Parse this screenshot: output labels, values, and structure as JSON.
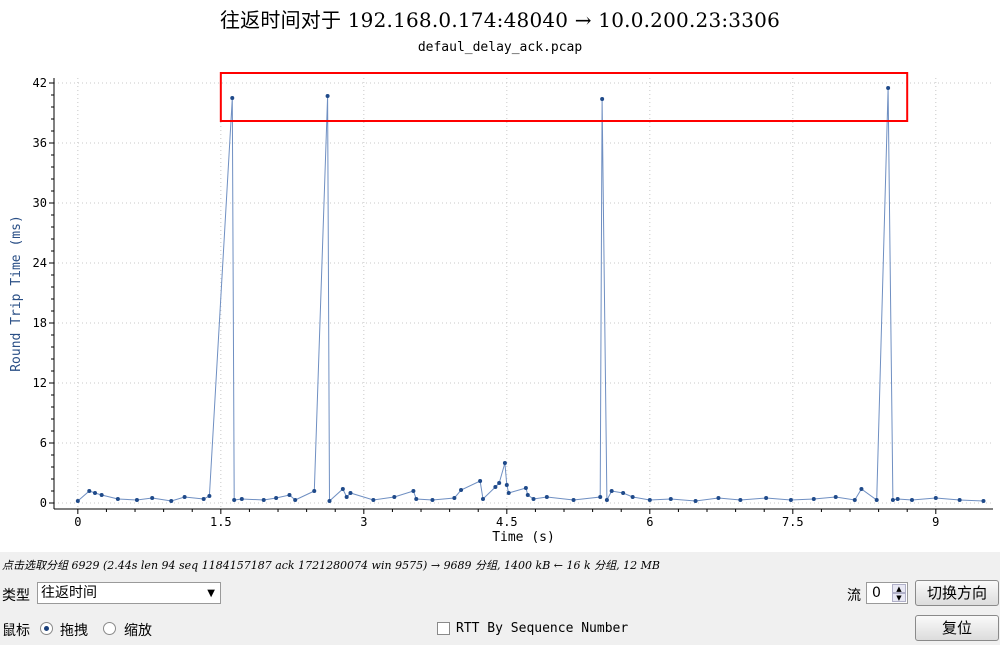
{
  "chart_data": {
    "type": "scatter",
    "title": "往返时间对于 192.168.0.174:48040 → 10.0.200.23:3306",
    "subtitle": "defaul_delay_ack.pcap",
    "xlabel": "Time (s)",
    "ylabel": "Round Trip Time (ms)",
    "xlim": [
      -0.25,
      9.6
    ],
    "ylim": [
      -0.6,
      42.5
    ],
    "x_ticks": [
      "0",
      "1.5",
      "3",
      "4.5",
      "6",
      "7.5",
      "9"
    ],
    "x_tick_values": [
      0,
      1.5,
      3,
      4.5,
      6,
      7.5,
      9
    ],
    "y_ticks": [
      "0",
      "6",
      "12",
      "18",
      "24",
      "30",
      "36",
      "42"
    ],
    "y_tick_values": [
      0,
      6,
      12,
      18,
      24,
      30,
      36,
      42
    ],
    "grid": true,
    "series": [
      {
        "color": "#1f4a8a",
        "x": [
          0.0,
          0.12,
          0.18,
          0.25,
          0.42,
          0.62,
          0.78,
          0.98,
          1.12,
          1.32,
          1.38,
          1.62,
          1.64,
          1.72,
          1.95,
          2.08,
          2.22,
          2.28,
          2.48,
          2.62,
          2.64,
          2.78,
          2.82,
          2.86,
          3.1,
          3.32,
          3.52,
          3.55,
          3.72,
          3.95,
          4.02,
          4.22,
          4.25,
          4.38,
          4.42,
          4.48,
          4.5,
          4.52,
          4.7,
          4.72,
          4.78,
          4.92,
          5.2,
          5.48,
          5.5,
          5.55,
          5.6,
          5.72,
          5.82,
          6.0,
          6.22,
          6.48,
          6.72,
          6.95,
          7.22,
          7.48,
          7.72,
          7.95,
          8.15,
          8.22,
          8.38,
          8.5,
          8.55,
          8.6,
          8.75,
          9.0,
          9.25,
          9.5
        ],
        "y": [
          0.2,
          1.2,
          1.0,
          0.8,
          0.4,
          0.3,
          0.5,
          0.2,
          0.6,
          0.4,
          0.7,
          40.5,
          0.3,
          0.4,
          0.3,
          0.5,
          0.8,
          0.3,
          1.2,
          40.7,
          0.2,
          1.4,
          0.6,
          1.0,
          0.3,
          0.6,
          1.2,
          0.4,
          0.3,
          0.5,
          1.3,
          2.2,
          0.4,
          1.6,
          2.0,
          4.0,
          1.8,
          1.0,
          1.5,
          0.8,
          0.4,
          0.6,
          0.3,
          0.6,
          40.4,
          0.3,
          1.2,
          1.0,
          0.6,
          0.3,
          0.4,
          0.2,
          0.5,
          0.3,
          0.5,
          0.3,
          0.4,
          0.6,
          0.3,
          1.4,
          0.3,
          41.5,
          0.3,
          0.4,
          0.3,
          0.5,
          0.3,
          0.2
        ]
      }
    ],
    "annotation": {
      "type": "highlight-box",
      "color": "#ff0000",
      "x_range": [
        1.5,
        8.7
      ],
      "y_range": [
        38.2,
        43.0
      ]
    }
  },
  "status_text": "点击选取分组 6929 (2.44s len 94 seq 1184157187 ack 1721280074 win 9575) → 9689 分组, 1400 kB ← 16 k 分组, 12 MB",
  "controls": {
    "type_label": "类型",
    "type_value": "往返时间",
    "flow_label": "流",
    "flow_value": "0",
    "switch_direction_button": "切换方向",
    "mouse_label": "鼠标",
    "drag_label": "拖拽",
    "zoom_label": "缩放",
    "rtt_by_seq_label": "RTT By Sequence Number",
    "reset_button": "复位"
  }
}
